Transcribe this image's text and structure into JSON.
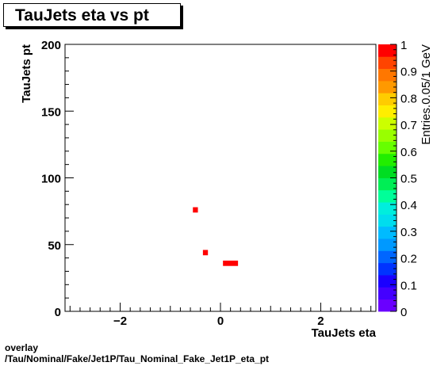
{
  "title": "TauJets eta vs pt",
  "footer": {
    "line1": "overlay",
    "line2": "/Tau/Nominal/Fake/Jet1P/Tau_Nominal_Fake_Jet1P_eta_pt"
  },
  "chart_data": {
    "type": "heatmap",
    "title": "TauJets eta vs pt",
    "xlabel": "TauJets eta",
    "ylabel": "TauJets pt",
    "zlabel": "Entries.0.05/1 GeV",
    "xlim": [
      -3.1,
      3.1
    ],
    "ylim": [
      0,
      200
    ],
    "zlim": [
      0,
      1
    ],
    "x_ticks": [
      -2,
      0,
      2
    ],
    "x_tick_labels": [
      "−2",
      "0",
      "2"
    ],
    "y_ticks": [
      0,
      50,
      100,
      150,
      200
    ],
    "y_tick_labels": [
      "0",
      "50",
      "100",
      "150",
      "200"
    ],
    "z_ticks": [
      0,
      0.1,
      0.2,
      0.3,
      0.4,
      0.5,
      0.6,
      0.7,
      0.8,
      0.9,
      1
    ],
    "z_tick_labels": [
      "0",
      "0.1",
      "0.2",
      "0.3",
      "0.4",
      "0.5",
      "0.6",
      "0.7",
      "0.8",
      "0.9",
      "1"
    ],
    "cells": [
      {
        "x": [
          -0.55,
          -0.45
        ],
        "y": [
          74,
          78
        ],
        "value": 1
      },
      {
        "x": [
          -0.35,
          -0.25
        ],
        "y": [
          42,
          46
        ],
        "value": 1
      },
      {
        "x": [
          0.05,
          0.35
        ],
        "y": [
          34,
          38
        ],
        "value": 1
      }
    ],
    "grid": false,
    "palette": [
      "#6a00ff",
      "#4400ff",
      "#1a00ff",
      "#0033ff",
      "#0066ff",
      "#0099ff",
      "#00bbff",
      "#00ddee",
      "#00eedd",
      "#00ff99",
      "#00ee55",
      "#00dd22",
      "#22ee00",
      "#66ff00",
      "#99ff00",
      "#ccff00",
      "#ffee00",
      "#ffcc00",
      "#ff9900",
      "#ff7700",
      "#ff4400",
      "#ff0000"
    ]
  }
}
